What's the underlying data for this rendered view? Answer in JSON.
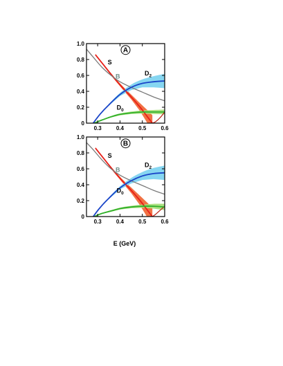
{
  "figure": {
    "xlabel": "E (GeV)"
  },
  "chart_data": [
    {
      "type": "line",
      "panel_label": "A",
      "xlim": [
        0.25,
        0.6
      ],
      "ylim": [
        0,
        1.0
      ],
      "x_ticks": [
        "0.3",
        "0.4",
        "0.5",
        "0.6"
      ],
      "y_ticks": [
        "0",
        "0.2",
        "0.4",
        "0.6",
        "0.8",
        "1.0"
      ],
      "series": [
        {
          "name": "S",
          "color": "#e8201a",
          "band_color": "#f06a3a",
          "x": [
            0.29,
            0.33,
            0.37,
            0.41,
            0.45,
            0.49,
            0.52,
            0.545
          ],
          "y": [
            0.86,
            0.72,
            0.58,
            0.45,
            0.33,
            0.2,
            0.09,
            0.0
          ],
          "band": [
            0.01,
            0.01,
            0.015,
            0.02,
            0.03,
            0.05,
            0.08,
            0.1
          ],
          "tail_x": [
            0.545,
            0.56,
            0.58,
            0.6
          ],
          "tail_y": [
            0.0,
            0.02,
            0.07,
            0.14
          ]
        },
        {
          "name": "B",
          "color": "#7a7a7a",
          "x": [
            0.25,
            0.28,
            0.32,
            0.36,
            0.4,
            0.45,
            0.5,
            0.55,
            0.6
          ],
          "y": [
            0.93,
            0.83,
            0.7,
            0.6,
            0.52,
            0.45,
            0.39,
            0.33,
            0.28
          ]
        },
        {
          "name": "D",
          "name_sub": "2",
          "color": "#1a44c8",
          "band_color": "#7fd4f0",
          "x": [
            0.28,
            0.31,
            0.35,
            0.4,
            0.45,
            0.5,
            0.55,
            0.6
          ],
          "y": [
            0.0,
            0.11,
            0.23,
            0.36,
            0.45,
            0.5,
            0.52,
            0.53
          ],
          "band": [
            0.0,
            0.005,
            0.01,
            0.02,
            0.035,
            0.05,
            0.07,
            0.09
          ]
        },
        {
          "name": "D",
          "name_sub": "0",
          "color": "#2fb02a",
          "band_color": "#a8de7a",
          "x": [
            0.285,
            0.32,
            0.36,
            0.4,
            0.45,
            0.5,
            0.55,
            0.6
          ],
          "y": [
            0.0,
            0.04,
            0.08,
            0.11,
            0.13,
            0.14,
            0.14,
            0.14
          ],
          "band": [
            0.0,
            0.005,
            0.01,
            0.012,
            0.015,
            0.02,
            0.025,
            0.03
          ]
        }
      ],
      "annotations": [
        {
          "series": 0,
          "x": 0.345,
          "y": 0.74
        },
        {
          "series": 1,
          "x": 0.38,
          "y": 0.56
        },
        {
          "series": 2,
          "x": 0.51,
          "y": 0.6
        },
        {
          "series": 3,
          "x": 0.385,
          "y": 0.17
        }
      ]
    },
    {
      "type": "line",
      "panel_label": "B",
      "xlim": [
        0.25,
        0.6
      ],
      "ylim": [
        0,
        1.0
      ],
      "x_ticks": [
        "0.3",
        "0.4",
        "0.5",
        "0.6"
      ],
      "y_ticks": [
        "0",
        "0.2",
        "0.4",
        "0.6",
        "0.8",
        "1.0"
      ],
      "series": [
        {
          "name": "S",
          "color": "#e8201a",
          "band_color": "#f06a3a",
          "x": [
            0.29,
            0.33,
            0.37,
            0.41,
            0.45,
            0.49,
            0.52,
            0.545
          ],
          "y": [
            0.86,
            0.72,
            0.58,
            0.45,
            0.33,
            0.2,
            0.09,
            0.0
          ],
          "band": [
            0.01,
            0.01,
            0.015,
            0.02,
            0.035,
            0.06,
            0.09,
            0.11
          ],
          "tail_x": [
            0.545,
            0.56,
            0.58,
            0.6
          ],
          "tail_y": [
            0.0,
            0.03,
            0.08,
            0.13
          ]
        },
        {
          "name": "B",
          "color": "#7a7a7a",
          "x": [
            0.25,
            0.28,
            0.32,
            0.36,
            0.4,
            0.45,
            0.5,
            0.55,
            0.6
          ],
          "y": [
            0.93,
            0.84,
            0.71,
            0.6,
            0.52,
            0.45,
            0.39,
            0.33,
            0.28
          ]
        },
        {
          "name": "D",
          "name_sub": "2",
          "color": "#1a44c8",
          "band_color": "#7fd4f0",
          "x": [
            0.28,
            0.31,
            0.35,
            0.4,
            0.45,
            0.5,
            0.55,
            0.6
          ],
          "y": [
            0.0,
            0.11,
            0.23,
            0.36,
            0.45,
            0.51,
            0.54,
            0.55
          ],
          "band": [
            0.0,
            0.005,
            0.01,
            0.02,
            0.035,
            0.05,
            0.07,
            0.09
          ]
        },
        {
          "name": "D",
          "name_sub": "0",
          "color": "#2fb02a",
          "band_color": "#a8de7a",
          "x": [
            0.285,
            0.32,
            0.36,
            0.4,
            0.45,
            0.5,
            0.55,
            0.6
          ],
          "y": [
            0.0,
            0.04,
            0.07,
            0.1,
            0.12,
            0.13,
            0.13,
            0.12
          ],
          "band": [
            0.0,
            0.005,
            0.01,
            0.012,
            0.015,
            0.02,
            0.03,
            0.04
          ]
        }
      ],
      "annotations": [
        {
          "series": 0,
          "x": 0.345,
          "y": 0.74
        },
        {
          "series": 1,
          "x": 0.38,
          "y": 0.56
        },
        {
          "series": 2,
          "x": 0.51,
          "y": 0.62
        },
        {
          "series": 3,
          "x": 0.385,
          "y": 0.3
        }
      ]
    }
  ]
}
